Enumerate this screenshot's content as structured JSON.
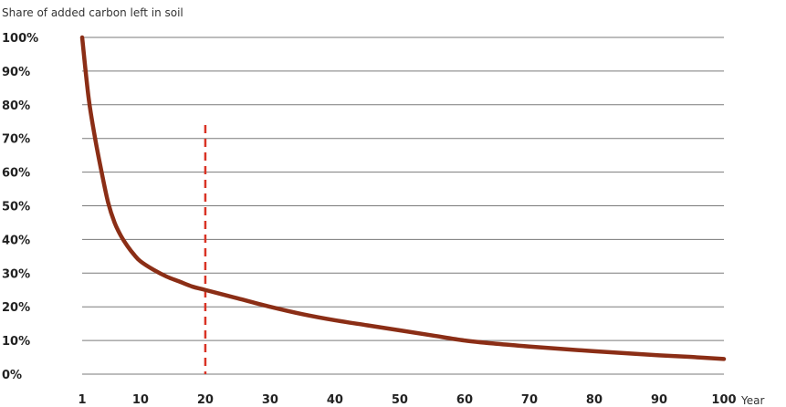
{
  "chart_data": {
    "type": "line",
    "ylabel": "Share of added carbon left in soil",
    "xlabel": "Year",
    "ylim": [
      0,
      100
    ],
    "xlim": [
      1,
      100
    ],
    "y_ticks": [
      "0%",
      "10%",
      "20%",
      "30%",
      "40%",
      "50%",
      "60%",
      "70%",
      "80%",
      "90%",
      "100%"
    ],
    "x_ticks": [
      "1",
      "10",
      "20",
      "30",
      "40",
      "50",
      "60",
      "70",
      "80",
      "90",
      "100"
    ],
    "grid": "horizontal",
    "series": [
      {
        "x": [
          1,
          2,
          3,
          4,
          5,
          6,
          7,
          8,
          9,
          10,
          12,
          14,
          16,
          18,
          20,
          25,
          30,
          35,
          40,
          45,
          50,
          55,
          60,
          65,
          70,
          75,
          80,
          85,
          90,
          95,
          100
        ],
        "values": [
          100,
          82,
          70,
          60,
          51,
          45,
          41,
          38,
          35.5,
          33.5,
          31,
          29,
          27.5,
          26,
          25,
          22.5,
          20,
          17.8,
          16,
          14.5,
          13,
          11.5,
          10,
          9,
          8.2,
          7.5,
          6.8,
          6.2,
          5.6,
          5.1,
          4.5
        ]
      }
    ],
    "marker_line": {
      "x": 20,
      "y_top": 74
    }
  },
  "colors": {
    "curve": "#8b2e16",
    "marker": "#d93325",
    "grid": "#7a7a7a",
    "text": "#222222"
  }
}
